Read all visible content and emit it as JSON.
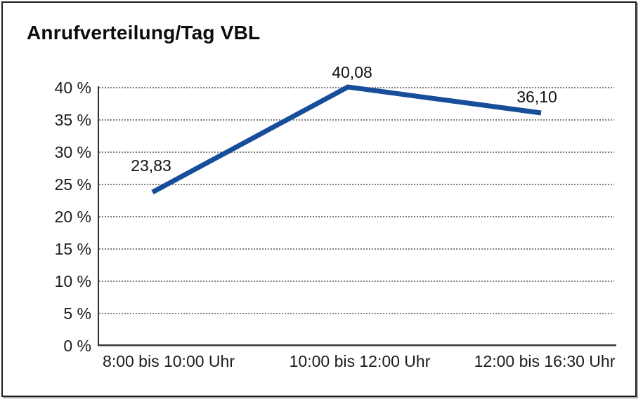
{
  "title": "Anrufverteilung/Tag VBL",
  "chart_data": {
    "type": "line",
    "title": "Anrufverteilung/Tag VBL",
    "categories": [
      "8:00 bis 10:00 Uhr",
      "10:00 bis 12:00 Uhr",
      "12:00 bis 16:30 Uhr"
    ],
    "values": [
      23.83,
      40.08,
      36.1
    ],
    "value_labels": [
      "23,83",
      "40,08",
      "36,10"
    ],
    "xlabel": "",
    "ylabel": "",
    "ylim": [
      0,
      40
    ],
    "y_tick_values": [
      40,
      35,
      30,
      25,
      20,
      15,
      10,
      5,
      0
    ],
    "y_tick_labels": [
      "40 %",
      "35 %",
      "30 %",
      "25 %",
      "20 %",
      "15 %",
      "10 %",
      "5 %",
      "0 %"
    ],
    "grid": "horizontal-dotted",
    "legend_position": "none",
    "line_color": "#174e9a",
    "text_color": "#1a1a1a",
    "axis_color": "#2e2e2e"
  }
}
